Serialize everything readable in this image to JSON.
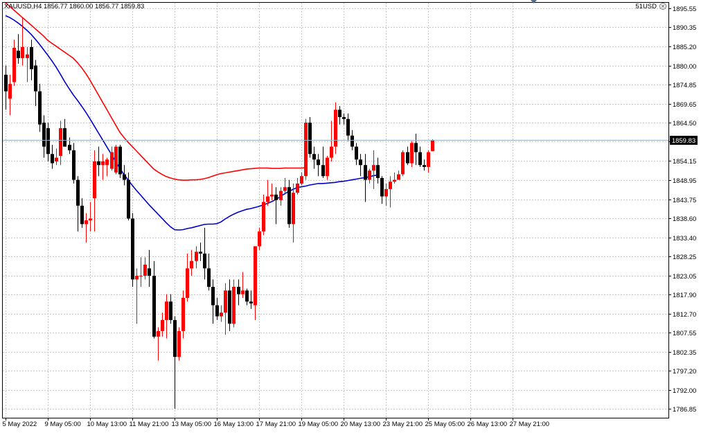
{
  "header": {
    "symbol_info": "XAUUSD,H4  1856.77 1860.00 1856.77 1859.83",
    "expert_label": "51USD",
    "close_icon": "close-icon"
  },
  "colors": {
    "background": "#ffffff",
    "grid": "#c8c8c8",
    "bull_body": "#ff0000",
    "bear_body": "#000000",
    "ma_fast": "#ff0000",
    "ma_slow": "#0000c8",
    "price_tag_bg": "#000000",
    "price_tag_text": "#ffffff"
  },
  "chart_data": {
    "type": "candlestick",
    "symbol": "XAUUSD",
    "timeframe": "H4",
    "current_price": "1859.83",
    "ylim": [
      1784.5,
      1897.0
    ],
    "y_ticks": [
      "1895.55",
      "1890.35",
      "1885.20",
      "1880.00",
      "1874.85",
      "1869.65",
      "1864.50",
      "1859.35",
      "1854.15",
      "1848.95",
      "1843.75",
      "1838.60",
      "1833.40",
      "1828.25",
      "1823.05",
      "1817.90",
      "1812.70",
      "1807.55",
      "1802.35",
      "1797.20",
      "1792.00",
      "1786.85"
    ],
    "x_labels": [
      {
        "label": "5 May 2022",
        "bar": 0
      },
      {
        "label": "9 May 05:00",
        "bar": 10
      },
      {
        "label": "10 May 13:00",
        "bar": 20
      },
      {
        "label": "11 May 21:00",
        "bar": 30
      },
      {
        "label": "13 May 05:00",
        "bar": 40
      },
      {
        "label": "16 May 13:00",
        "bar": 50
      },
      {
        "label": "17 May 21:00",
        "bar": 60
      },
      {
        "label": "19 May 05:00",
        "bar": 70
      },
      {
        "label": "20 May 13:00",
        "bar": 80
      },
      {
        "label": "23 May 21:00",
        "bar": 90
      },
      {
        "label": "25 May 05:00",
        "bar": 100
      },
      {
        "label": "26 May 13:00",
        "bar": 110
      },
      {
        "label": "27 May 21:00",
        "bar": 120
      }
    ],
    "candles": [
      [
        1877.5,
        1880.0,
        1868.0,
        1873.0
      ],
      [
        1871.0,
        1877.5,
        1866.5,
        1875.0
      ],
      [
        1875.5,
        1887.0,
        1874.5,
        1884.8
      ],
      [
        1884.0,
        1888.5,
        1880.5,
        1882.0
      ],
      [
        1882.0,
        1893.0,
        1880.0,
        1885.0
      ],
      [
        1882.0,
        1885.0,
        1875.5,
        1883.0
      ],
      [
        1885.0,
        1887.0,
        1876.0,
        1879.0
      ],
      [
        1880.0,
        1881.5,
        1869.0,
        1873.0
      ],
      [
        1873.0,
        1875.0,
        1862.0,
        1864.0
      ],
      [
        1864.5,
        1866.5,
        1855.0,
        1858.0
      ],
      [
        1863.0,
        1864.5,
        1854.0,
        1856.0
      ],
      [
        1856.0,
        1858.5,
        1852.0,
        1853.5
      ],
      [
        1854.0,
        1857.5,
        1853.0,
        1855.0
      ],
      [
        1855.5,
        1865.0,
        1853.0,
        1863.0
      ],
      [
        1863.0,
        1865.5,
        1858.0,
        1858.0
      ],
      [
        1858.5,
        1860.5,
        1856.0,
        1857.0
      ],
      [
        1857.0,
        1859.0,
        1848.0,
        1849.0
      ],
      [
        1849.0,
        1850.0,
        1835.0,
        1842.0
      ],
      [
        1842.0,
        1844.0,
        1836.0,
        1837.0
      ],
      [
        1837.0,
        1840.0,
        1832.0,
        1838.0
      ],
      [
        1838.0,
        1843.0,
        1835.0,
        1838.5
      ],
      [
        1844.0,
        1857.0,
        1835.0,
        1854.0
      ],
      [
        1854.0,
        1858.0,
        1850.0,
        1853.0
      ],
      [
        1853.0,
        1856.0,
        1849.0,
        1854.0
      ],
      [
        1853.0,
        1855.0,
        1850.0,
        1854.5
      ],
      [
        1852.0,
        1858.0,
        1851.5,
        1856.5
      ],
      [
        1851.0,
        1858.5,
        1850.5,
        1858.0
      ],
      [
        1858.0,
        1858.5,
        1849.5,
        1850.5
      ],
      [
        1850.5,
        1853.0,
        1847.5,
        1849.0
      ],
      [
        1849.0,
        1851.0,
        1838.0,
        1838.5
      ],
      [
        1838.5,
        1840.0,
        1820.0,
        1822.0
      ],
      [
        1822.0,
        1825.0,
        1810.0,
        1823.0
      ],
      [
        1823.0,
        1828.0,
        1820.0,
        1823.0
      ],
      [
        1823.0,
        1828.0,
        1822.0,
        1826.0
      ],
      [
        1825.0,
        1830.0,
        1820.0,
        1823.0
      ],
      [
        1823.0,
        1827.0,
        1806.0,
        1806.5
      ],
      [
        1806.5,
        1809.0,
        1800.0,
        1808.0
      ],
      [
        1808.0,
        1813.0,
        1806.5,
        1811.0
      ],
      [
        1811.0,
        1818.0,
        1806.0,
        1816.0
      ],
      [
        1816.0,
        1818.0,
        1810.0,
        1811.0
      ],
      [
        1811.0,
        1812.0,
        1787.0,
        1801.0
      ],
      [
        1801.0,
        1809.0,
        1800.0,
        1808.0
      ],
      [
        1808.0,
        1819.0,
        1806.0,
        1817.0
      ],
      [
        1817.0,
        1829.0,
        1816.0,
        1825.0
      ],
      [
        1825.0,
        1830.0,
        1823.0,
        1827.0
      ],
      [
        1827.0,
        1831.0,
        1825.0,
        1829.5
      ],
      [
        1829.5,
        1832.0,
        1827.0,
        1829.0
      ],
      [
        1829.0,
        1836.0,
        1822.0,
        1825.0
      ],
      [
        1825.0,
        1829.0,
        1819.0,
        1820.0
      ],
      [
        1820.0,
        1822.0,
        1810.0,
        1815.0
      ],
      [
        1815.0,
        1817.0,
        1811.0,
        1812.0
      ],
      [
        1812.0,
        1815.0,
        1810.5,
        1813.0
      ],
      [
        1813.0,
        1821.0,
        1807.0,
        1819.0
      ],
      [
        1819.0,
        1822.0,
        1808.0,
        1810.0
      ],
      [
        1810.0,
        1822.0,
        1809.0,
        1820.0
      ],
      [
        1820.0,
        1822.0,
        1815.0,
        1818.0
      ],
      [
        1818.0,
        1824.0,
        1817.0,
        1819.0
      ],
      [
        1819.0,
        1819.5,
        1815.0,
        1816.0
      ],
      [
        1816.0,
        1819.0,
        1814.0,
        1815.5
      ],
      [
        1815.0,
        1831.0,
        1811.0,
        1831.0
      ],
      [
        1831.0,
        1836.0,
        1830.0,
        1835.0
      ],
      [
        1835.0,
        1845.0,
        1834.0,
        1843.0
      ],
      [
        1843.0,
        1849.0,
        1842.0,
        1844.5
      ],
      [
        1844.5,
        1848.0,
        1843.5,
        1845.0
      ],
      [
        1845.0,
        1847.0,
        1837.0,
        1843.5
      ],
      [
        1843.5,
        1847.0,
        1842.0,
        1846.0
      ],
      [
        1846.0,
        1849.5,
        1845.0,
        1847.0
      ],
      [
        1847.0,
        1849.0,
        1836.0,
        1837.0
      ],
      [
        1837.0,
        1848.0,
        1832.0,
        1845.5
      ],
      [
        1845.5,
        1849.5,
        1845.0,
        1848.0
      ],
      [
        1848.0,
        1851.0,
        1847.5,
        1850.0
      ],
      [
        1850.0,
        1865.5,
        1849.0,
        1864.5
      ],
      [
        1864.5,
        1866.0,
        1855.0,
        1856.0
      ],
      [
        1856.0,
        1858.0,
        1852.0,
        1854.5
      ],
      [
        1854.5,
        1856.0,
        1850.0,
        1853.0
      ],
      [
        1853.0,
        1858.0,
        1849.5,
        1850.0
      ],
      [
        1850.0,
        1855.5,
        1849.0,
        1855.0
      ],
      [
        1855.0,
        1865.0,
        1854.0,
        1858.0
      ],
      [
        1858.0,
        1870.0,
        1856.0,
        1868.0
      ],
      [
        1868.0,
        1869.0,
        1864.0,
        1866.0
      ],
      [
        1866.0,
        1867.0,
        1864.0,
        1865.5
      ],
      [
        1865.5,
        1867.0,
        1859.5,
        1861.0
      ],
      [
        1861.0,
        1862.5,
        1857.0,
        1858.0
      ],
      [
        1858.0,
        1859.0,
        1853.0,
        1854.5
      ],
      [
        1854.5,
        1856.0,
        1850.0,
        1853.0
      ],
      [
        1853.0,
        1856.0,
        1843.0,
        1849.0
      ],
      [
        1849.0,
        1852.0,
        1848.0,
        1851.5
      ],
      [
        1851.5,
        1857.0,
        1846.5,
        1853.0
      ],
      [
        1853.0,
        1855.0,
        1848.0,
        1849.5
      ],
      [
        1849.5,
        1850.0,
        1842.5,
        1844.5
      ],
      [
        1844.5,
        1848.0,
        1842.0,
        1846.5
      ],
      [
        1846.5,
        1850.0,
        1841.5,
        1848.5
      ],
      [
        1848.5,
        1851.0,
        1848.0,
        1849.0
      ],
      [
        1849.0,
        1851.5,
        1849.5,
        1850.5
      ],
      [
        1850.5,
        1857.0,
        1850.0,
        1856.5
      ],
      [
        1856.5,
        1858.0,
        1853.0,
        1853.5
      ],
      [
        1853.5,
        1859.5,
        1852.5,
        1859.0
      ],
      [
        1859.0,
        1861.5,
        1853.0,
        1856.5
      ],
      [
        1856.5,
        1858.0,
        1852.5,
        1853.0
      ],
      [
        1853.0,
        1854.5,
        1851.5,
        1852.5
      ],
      [
        1852.5,
        1857.0,
        1851.0,
        1856.5
      ],
      [
        1856.77,
        1860.0,
        1856.77,
        1859.83
      ]
    ],
    "ma_fast": [
      1897.0,
      1896.0,
      1895.0,
      1894.0,
      1893.0,
      1892.0,
      1891.0,
      1890.0,
      1889.0,
      1888.0,
      1886.8,
      1886.0,
      1885.2,
      1884.4,
      1883.6,
      1882.8,
      1882.0,
      1880.8,
      1879.4,
      1877.8,
      1876.0,
      1874.0,
      1872.0,
      1870.0,
      1868.0,
      1866.0,
      1864.0,
      1862.0,
      1860.5,
      1859.2,
      1858.0,
      1856.8,
      1855.6,
      1854.4,
      1853.2,
      1852.0,
      1851.2,
      1850.5,
      1849.9,
      1849.5,
      1849.2,
      1849.0,
      1848.9,
      1848.9,
      1849.0,
      1849.0,
      1849.1,
      1849.3,
      1849.6,
      1850.0,
      1850.4,
      1850.7,
      1850.9,
      1851.1,
      1851.3,
      1851.5,
      1851.7,
      1851.9,
      1852.0,
      1852.1,
      1852.2,
      1852.2,
      1852.2,
      1852.1,
      1852.1,
      1852.1,
      1852.2,
      1852.2,
      1852.2,
      1852.2,
      1852.2,
      1852.3
    ],
    "ma_fast_start": 50,
    "ma_slow": [
      1893.5,
      1893.0,
      1892.3,
      1891.5,
      1890.6,
      1889.6,
      1888.5,
      1887.2,
      1885.8,
      1884.3,
      1882.8,
      1881.2,
      1879.5,
      1877.6,
      1875.6,
      1873.8,
      1872.1,
      1870.6,
      1869.0,
      1867.3,
      1865.5,
      1863.6,
      1861.7,
      1859.8,
      1857.9,
      1856.0,
      1854.1,
      1852.2,
      1850.5,
      1849.0,
      1847.5,
      1846.1,
      1844.8,
      1843.5,
      1842.2,
      1841.0,
      1839.8,
      1838.6,
      1837.4,
      1836.3
    ],
    "ma_slow_start": 0,
    "ma_slow_tail": [
      1835.5,
      1835.4,
      1835.5,
      1835.8,
      1836.0,
      1836.3,
      1836.6,
      1836.9,
      1837.0,
      1837.0,
      1837.1,
      1837.6,
      1838.4,
      1839.1,
      1839.7,
      1840.2,
      1840.6,
      1841.0,
      1841.2,
      1841.5,
      1841.8,
      1842.2,
      1842.6,
      1843.1,
      1843.7,
      1844.4,
      1845.2,
      1845.8,
      1846.4,
      1846.9,
      1847.1,
      1847.3,
      1847.6,
      1847.8,
      1848.0,
      1848.0,
      1848.1,
      1848.2,
      1848.3,
      1848.5,
      1848.6,
      1848.8,
      1849.0,
      1849.2,
      1849.4,
      1849.6,
      1849.8,
      1850.1,
      1850.3
    ],
    "ma_slow_tail_start": 72
  }
}
